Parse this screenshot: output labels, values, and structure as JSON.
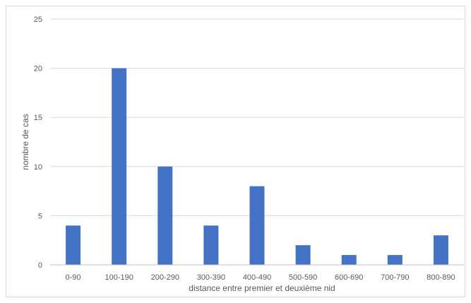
{
  "chart_data": {
    "type": "bar",
    "title": "",
    "xlabel": "distance entre premier et deuxième nid",
    "ylabel": "nombre  de cas",
    "categories": [
      "0-90",
      "100-190",
      "200-290",
      "300-390",
      "400-490",
      "500-590",
      "600-690",
      "700-790",
      "800-890"
    ],
    "values": [
      4,
      20,
      10,
      4,
      8,
      2,
      1,
      1,
      3
    ],
    "ylim": [
      0,
      25
    ],
    "yticks": [
      "0",
      "5",
      "10",
      "15",
      "20",
      "25"
    ],
    "grid": true,
    "legend": "none",
    "bar_color": "#4472C4",
    "grid_color": "#d9d9d9",
    "axis_color": "#bfbfbf"
  }
}
